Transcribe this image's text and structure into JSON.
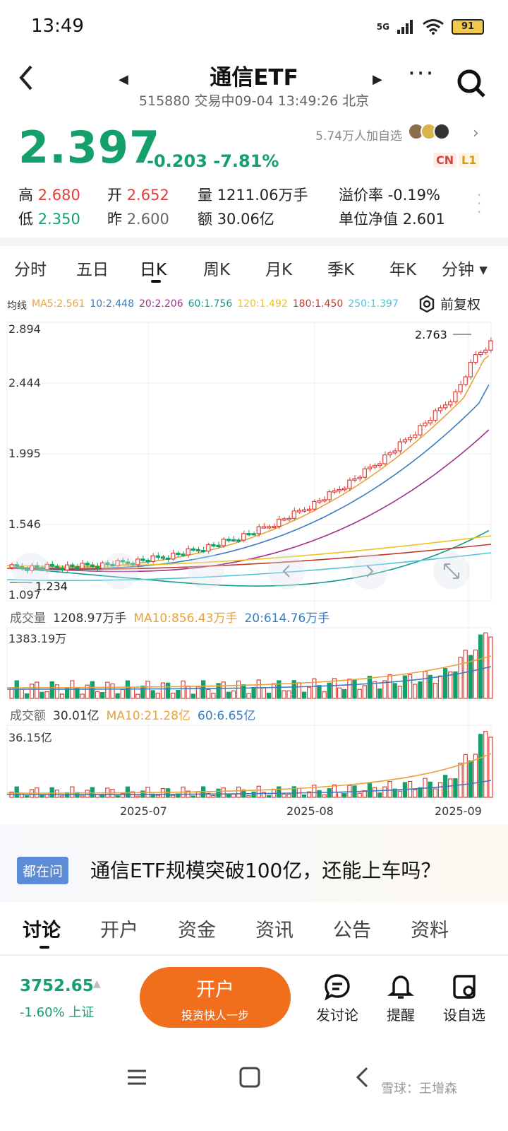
{
  "status_bar": {
    "time": "13:49",
    "network": "5G",
    "battery": "91"
  },
  "nav": {
    "title": "通信ETF",
    "subtitle": "515880 交易中09-04 13:49:26 北京"
  },
  "quote": {
    "price": "2.397",
    "change": "-0.203 -7.81%",
    "followers": "5.74万人加自选",
    "badges": [
      "CN",
      "L1"
    ],
    "metrics": {
      "high_label": "高",
      "high": "2.680",
      "open_label": "开",
      "open": "2.652",
      "vol_label": "量",
      "vol": "1211.06万手",
      "premium_label": "溢价率",
      "premium": "-0.19%",
      "low_label": "低",
      "low": "2.350",
      "prev_label": "昨",
      "prev": "2.600",
      "amt_label": "额",
      "amt": "30.06亿",
      "nav_label": "单位净值",
      "nav": "2.601"
    }
  },
  "period_tabs": [
    "分时",
    "五日",
    "日K",
    "周K",
    "月K",
    "季K",
    "年K",
    "分钟 ▾"
  ],
  "ma_legend": {
    "label": "均线",
    "items": [
      {
        "text": "MA5:2.561",
        "color": "#e8a23a"
      },
      {
        "text": "10:2.448",
        "color": "#3b7bbf"
      },
      {
        "text": "20:2.206",
        "color": "#a3308a"
      },
      {
        "text": "60:1.756",
        "color": "#149a8a"
      },
      {
        "text": "120:1.492",
        "color": "#f0c21f"
      },
      {
        "text": "180:1.450",
        "color": "#c0392b"
      },
      {
        "text": "250:1.397",
        "color": "#4fc3d9"
      }
    ]
  },
  "fuquan": "前复权",
  "kline": {
    "y_labels": [
      "2.894",
      "2.444",
      "1.995",
      "1.546",
      "1.097"
    ],
    "max_marker": "2.763",
    "min_marker": "1.234"
  },
  "volume": {
    "label": "成交量",
    "current": "1208.97万手",
    "ma10": "MA10:856.43万手",
    "ma20": "20:614.76万手",
    "max": "1383.19万"
  },
  "amount": {
    "label": "成交额",
    "current": "30.01亿",
    "ma10": "MA10:21.28亿",
    "ma60": "60:6.65亿",
    "max": "36.15亿"
  },
  "x_labels": [
    "2025-07",
    "2025-08",
    "2025-09"
  ],
  "question": {
    "tag": "都在问",
    "text": "通信ETF规模突破100亿，还能上车吗？"
  },
  "bottom_tabs": [
    "讨论",
    "开户",
    "资金",
    "资讯",
    "公告",
    "资料"
  ],
  "footer": {
    "index_value": "3752.65",
    "index_change": "-1.60% 上证",
    "open_btn": "开户",
    "open_sub": "投资快人一步",
    "actions": [
      "发讨论",
      "提醒",
      "设自选"
    ]
  },
  "watermark": "雪球：王增森",
  "colors": {
    "up": "#e0403a",
    "down": "#14a06a",
    "accent": "#f06e1c"
  }
}
